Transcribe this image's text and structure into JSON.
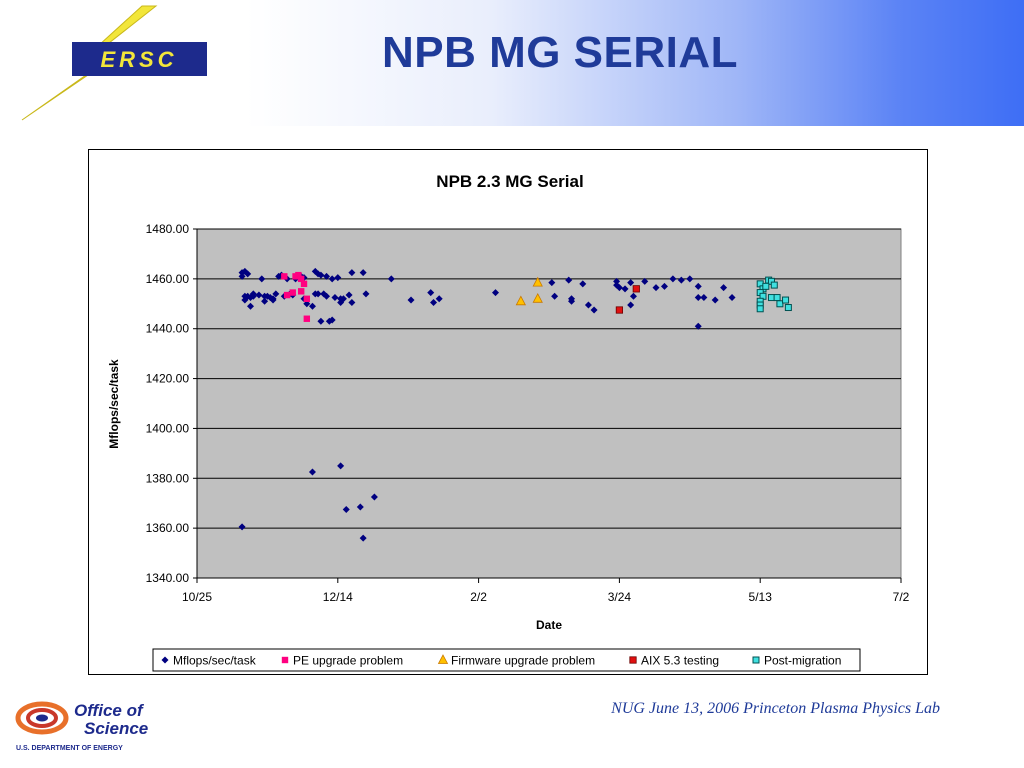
{
  "slide": {
    "title": "NPB MG SERIAL",
    "footer": "NUG June 13, 2006 Princeton Plasma Physics Lab",
    "nersc_logo_text": "ERSC",
    "office_logo_line1": "Office of",
    "office_logo_line2": "Science",
    "office_logo_line3": "U.S. DEPARTMENT OF ENERGY"
  },
  "colors": {
    "title": "#1f3b99",
    "plot_area": "#c0c0c0",
    "gridline": "#000000",
    "series_mflops": "#000080",
    "series_pe": "#ff0080",
    "series_firmware": "#ffc000",
    "series_aix": "#e01010",
    "series_post": "#40e0e0"
  },
  "chart_data": {
    "type": "scatter",
    "title": "NPB 2.3 MG Serial",
    "xlabel": "Date",
    "ylabel": "Mflops/sec/task",
    "ylim": [
      1340,
      1480
    ],
    "yticks": [
      "1480.00",
      "1460.00",
      "1440.00",
      "1420.00",
      "1400.00",
      "1380.00",
      "1360.00",
      "1340.00"
    ],
    "xticks": [
      "10/25",
      "12/14",
      "2/2",
      "3/24",
      "5/13",
      "7/2"
    ],
    "grid": "horizontal",
    "legend_position": "bottom",
    "series": [
      {
        "name": "Mflops/sec/task",
        "marker": "diamond",
        "points": [
          [
            "11/10",
            1461.0
          ],
          [
            "11/10",
            1462.5
          ],
          [
            "11/11",
            1463.0
          ],
          [
            "11/11",
            1453.0
          ],
          [
            "11/11",
            1451.5
          ],
          [
            "11/12",
            1462.0
          ],
          [
            "11/12",
            1453.0
          ],
          [
            "11/13",
            1452.5
          ],
          [
            "11/13",
            1449.0
          ],
          [
            "11/14",
            1454.0
          ],
          [
            "11/14",
            1453.0
          ],
          [
            "11/16",
            1453.5
          ],
          [
            "11/17",
            1460.0
          ],
          [
            "11/18",
            1451.0
          ],
          [
            "11/18",
            1453.0
          ],
          [
            "11/19",
            1453.0
          ],
          [
            "11/20",
            1452.5
          ],
          [
            "11/21",
            1452.0
          ],
          [
            "11/21",
            1451.5
          ],
          [
            "11/22",
            1454.0
          ],
          [
            "11/23",
            1461.0
          ],
          [
            "11/24",
            1461.5
          ],
          [
            "11/25",
            1453.0
          ],
          [
            "11/26",
            1460.0
          ],
          [
            "11/27",
            1454.0
          ],
          [
            "11/28",
            1453.5
          ],
          [
            "11/29",
            1460.0
          ],
          [
            "12/1",
            1461.0
          ],
          [
            "12/2",
            1460.5
          ],
          [
            "12/2",
            1452.0
          ],
          [
            "12/3",
            1450.0
          ],
          [
            "12/5",
            1449.0
          ],
          [
            "12/6",
            1454.0
          ],
          [
            "12/6",
            1463.0
          ],
          [
            "12/7",
            1454.0
          ],
          [
            "12/7",
            1462.0
          ],
          [
            "12/8",
            1461.5
          ],
          [
            "12/8",
            1443.0
          ],
          [
            "12/9",
            1454.0
          ],
          [
            "12/10",
            1453.0
          ],
          [
            "12/10",
            1461.0
          ],
          [
            "12/11",
            1443.0
          ],
          [
            "12/12",
            1460.0
          ],
          [
            "12/12",
            1443.5
          ],
          [
            "12/13",
            1452.5
          ],
          [
            "12/14",
            1460.5
          ],
          [
            "12/15",
            1452.0
          ],
          [
            "12/15",
            1450.5
          ],
          [
            "12/16",
            1452.0
          ],
          [
            "12/18",
            1453.5
          ],
          [
            "12/19",
            1450.5
          ],
          [
            "12/19",
            1462.5
          ],
          [
            "12/23",
            1462.5
          ],
          [
            "12/24",
            1454.0
          ],
          [
            "1/2",
            1460.0
          ],
          [
            "1/9",
            1451.5
          ],
          [
            "1/16",
            1454.5
          ],
          [
            "1/17",
            1450.5
          ],
          [
            "1/19",
            1452.0
          ],
          [
            "2/8",
            1454.5
          ],
          [
            "2/28",
            1458.5
          ],
          [
            "3/1",
            1453.0
          ],
          [
            "3/6",
            1459.5
          ],
          [
            "3/7",
            1451.0
          ],
          [
            "3/7",
            1452.0
          ],
          [
            "3/11",
            1458.0
          ],
          [
            "3/13",
            1449.5
          ],
          [
            "3/15",
            1447.5
          ],
          [
            "3/23",
            1459.0
          ],
          [
            "3/23",
            1457.5
          ],
          [
            "3/24",
            1456.5
          ],
          [
            "3/26",
            1456.0
          ],
          [
            "3/28",
            1458.5
          ],
          [
            "3/28",
            1449.5
          ],
          [
            "3/29",
            1453.0
          ],
          [
            "4/2",
            1459.0
          ],
          [
            "4/6",
            1456.5
          ],
          [
            "4/9",
            1457.0
          ],
          [
            "4/12",
            1460.0
          ],
          [
            "4/15",
            1459.5
          ],
          [
            "4/18",
            1460.0
          ],
          [
            "4/21",
            1452.5
          ],
          [
            "4/21",
            1457.0
          ],
          [
            "4/21",
            1441.0
          ],
          [
            "4/23",
            1452.5
          ],
          [
            "4/27",
            1451.5
          ],
          [
            "4/30",
            1456.5
          ],
          [
            "5/3",
            1452.5
          ],
          [
            "11/10",
            1360.5
          ],
          [
            "12/5",
            1382.5
          ],
          [
            "12/15",
            1385.0
          ],
          [
            "12/17",
            1367.5
          ],
          [
            "12/22",
            1368.5
          ],
          [
            "12/23",
            1356.0
          ],
          [
            "12/27",
            1372.5
          ]
        ]
      },
      {
        "name": "PE upgrade problem",
        "marker": "square",
        "points": [
          [
            "11/25",
            1461.0
          ],
          [
            "11/29",
            1461.0
          ],
          [
            "11/30",
            1461.5
          ],
          [
            "12/1",
            1460.0
          ],
          [
            "12/2",
            1458.0
          ],
          [
            "12/1",
            1455.0
          ],
          [
            "11/28",
            1454.5
          ],
          [
            "11/26",
            1453.5
          ],
          [
            "12/3",
            1452.0
          ],
          [
            "12/3",
            1444.0
          ]
        ]
      },
      {
        "name": "Firmware upgrade problem",
        "marker": "triangle",
        "points": [
          [
            "2/17",
            1451.0
          ],
          [
            "2/23",
            1458.5
          ],
          [
            "2/23",
            1452.0
          ]
        ]
      },
      {
        "name": "AIX 5.3 testing",
        "marker": "square",
        "points": [
          [
            "3/24",
            1447.5
          ],
          [
            "3/30",
            1456.0
          ]
        ]
      },
      {
        "name": "Post-migration",
        "marker": "square-hollow",
        "points": [
          [
            "5/13",
            1458.0
          ],
          [
            "5/14",
            1456.0
          ],
          [
            "5/13",
            1454.5
          ],
          [
            "5/14",
            1453.0
          ],
          [
            "5/13",
            1451.0
          ],
          [
            "5/13",
            1449.5
          ],
          [
            "5/13",
            1448.0
          ],
          [
            "5/16",
            1459.5
          ],
          [
            "5/17",
            1459.0
          ],
          [
            "5/18",
            1457.5
          ],
          [
            "5/17",
            1452.5
          ],
          [
            "5/19",
            1452.5
          ],
          [
            "5/20",
            1450.0
          ],
          [
            "5/22",
            1451.5
          ],
          [
            "5/23",
            1448.5
          ],
          [
            "5/15",
            1457.0
          ]
        ]
      }
    ]
  }
}
